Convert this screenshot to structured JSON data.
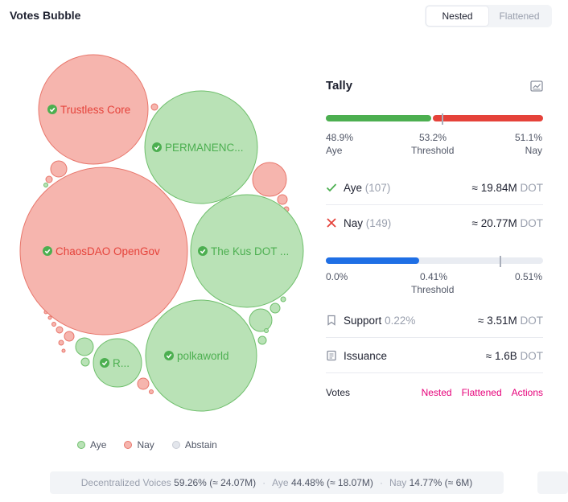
{
  "header": {
    "title": "Votes Bubble",
    "tabs": [
      {
        "label": "Nested",
        "active": true
      },
      {
        "label": "Flattened",
        "active": false
      }
    ]
  },
  "bubbles": {
    "labels": {
      "trustless_core": "Trustless Core",
      "permanence": "PERMANENC...",
      "chaosdao": "ChaosDAO OpenGov",
      "the_kus": "The Kus DOT ...",
      "polkaworld": "polkaworld",
      "r": "R..."
    }
  },
  "legend": {
    "aye": "Aye",
    "nay": "Nay",
    "abstain": "Abstain"
  },
  "footer": {
    "decentralized_label": "Decentralized Voices",
    "decentralized_value": "59.26% (≈ 24.07M)",
    "aye_label": "Aye",
    "aye_value": "44.48% (≈ 18.07M)",
    "nay_label": "Nay",
    "nay_value": "14.77% (≈ 6M)",
    "separator": "·"
  },
  "tally": {
    "title": "Tally",
    "approval_bar": {
      "aye_pct": "48.9%",
      "threshold_pct": "53.2%",
      "nay_pct": "51.1%",
      "aye_label": "Aye",
      "threshold_label": "Threshold",
      "nay_label": "Nay",
      "aye_fraction": 0.489,
      "threshold_fraction": 0.532
    },
    "aye_row": {
      "label": "Aye",
      "count": "(107)",
      "amount": "≈ 19.84M",
      "unit": "DOT"
    },
    "nay_row": {
      "label": "Nay",
      "count": "(149)",
      "amount": "≈ 20.77M",
      "unit": "DOT"
    },
    "support_bar": {
      "min": "0.0%",
      "threshold_pct": "0.41%",
      "max": "0.51%",
      "threshold_label": "Threshold",
      "fill_fraction": 0.43,
      "threshold_fraction": 0.8
    },
    "support_row": {
      "label": "Support",
      "pct": "0.22%",
      "amount": "≈ 3.51M",
      "unit": "DOT"
    },
    "issuance_row": {
      "label": "Issuance",
      "amount": "≈ 1.6B",
      "unit": "DOT"
    },
    "votes": {
      "label": "Votes",
      "links": [
        "Nested",
        "Flattened",
        "Actions"
      ]
    }
  },
  "colors": {
    "aye_fill": "#b9e2b6",
    "aye_stroke": "#6fbf6c",
    "aye_text": "#4caf50",
    "nay_fill": "#f6b5ae",
    "nay_stroke": "#e8766b",
    "nay_text": "#e5423a",
    "support_blue": "#1f6fe5",
    "accent_pink": "#e6007a"
  }
}
